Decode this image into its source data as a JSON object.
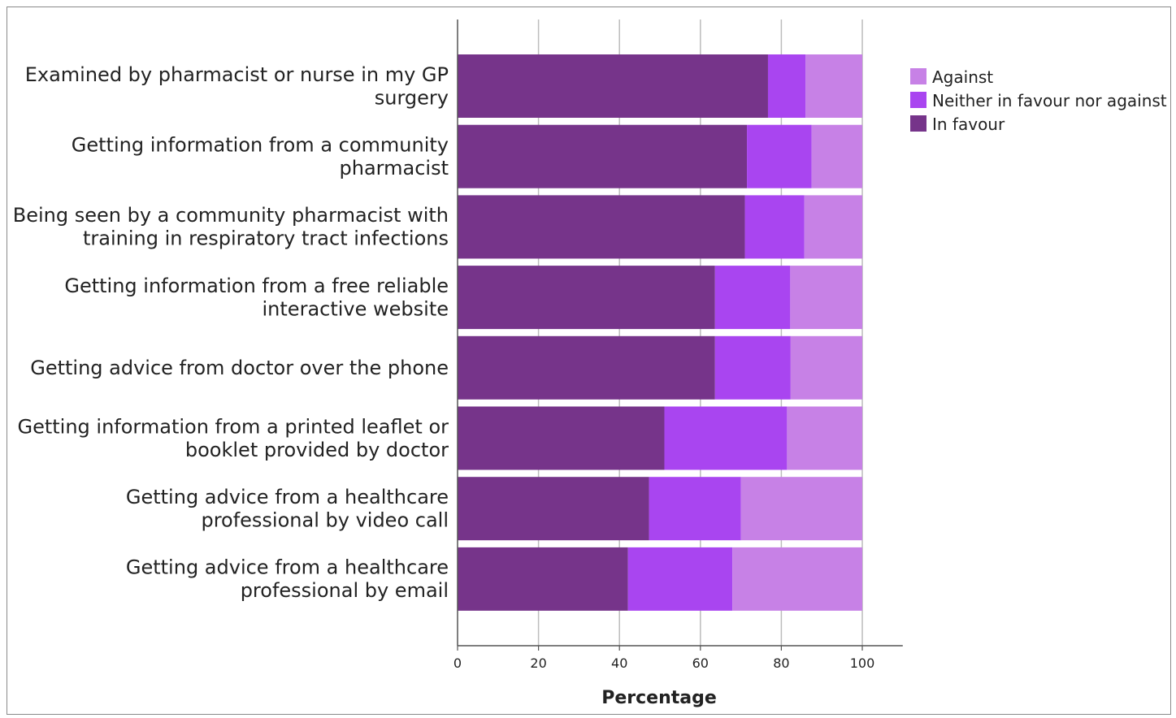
{
  "chart_data": {
    "type": "bar",
    "orientation": "horizontal",
    "stacked": true,
    "categories": [
      [
        "Examined by pharmacist or nurse in my GP",
        "surgery"
      ],
      [
        "Getting information from a community",
        "pharmacist"
      ],
      [
        "Being seen by a community pharmacist with",
        "training in respiratory tract infections"
      ],
      [
        "Getting information from a free reliable",
        "interactive website"
      ],
      [
        "Getting advice from doctor over the phone"
      ],
      [
        "Getting information from a printed leaflet or",
        "booklet provided by doctor"
      ],
      [
        "Getting advice from a healthcare",
        "professional by video call"
      ],
      [
        "Getting advice from a healthcare",
        "professional by email"
      ]
    ],
    "series": [
      {
        "name": "In favour",
        "color": "#76348a",
        "values": [
          76.7,
          71.5,
          71.0,
          63.6,
          63.6,
          51.1,
          47.3,
          42.1
        ]
      },
      {
        "name": "Neither in favour nor against",
        "color": "#a945f0",
        "values": [
          9.3,
          16.0,
          14.7,
          18.6,
          18.7,
          30.3,
          22.7,
          25.8
        ]
      },
      {
        "name": "Against",
        "color": "#c781e6",
        "values": [
          14.0,
          12.5,
          14.3,
          17.8,
          17.7,
          18.6,
          30.0,
          32.1
        ]
      }
    ],
    "xlabel": "Percentage",
    "ylabel": "",
    "xlim": [
      0,
      110
    ],
    "xticks": [
      0,
      20,
      40,
      60,
      80,
      100
    ],
    "grid": "vertical",
    "legend": {
      "placement": "top-right",
      "order": [
        "Against",
        "Neither in favour nor against",
        "In favour"
      ]
    }
  }
}
